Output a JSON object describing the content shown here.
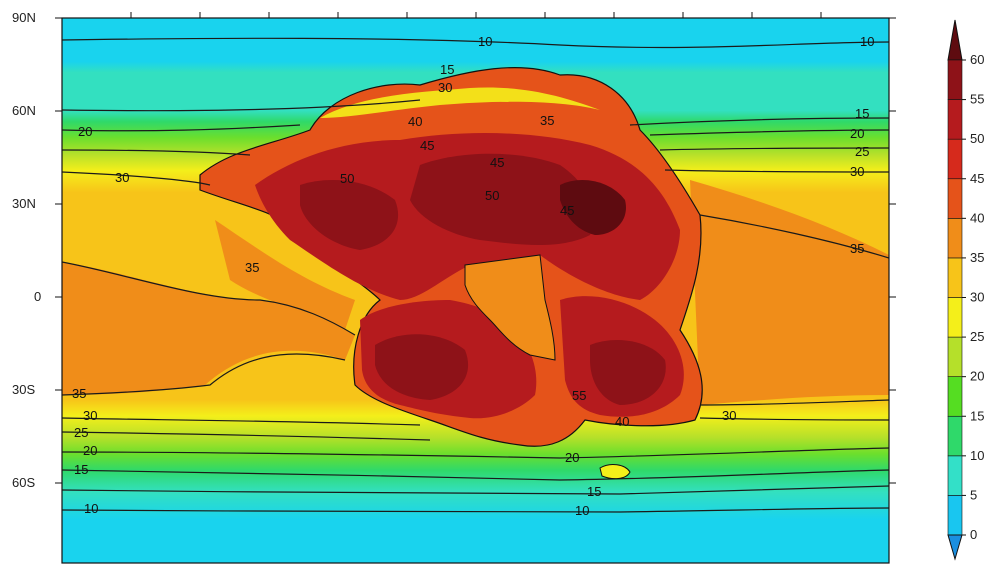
{
  "map": {
    "latitude_labels": [
      "90N",
      "60N",
      "30N",
      "0",
      "30S",
      "60S"
    ],
    "contour_labels": [
      "10",
      "10",
      "15",
      "30",
      "15",
      "20",
      "20",
      "25",
      "30",
      "30",
      "35",
      "35",
      "35",
      "30",
      "25",
      "20",
      "15",
      "10",
      "10",
      "15",
      "20",
      "30",
      "50",
      "45",
      "40",
      "35",
      "40",
      "45",
      "50",
      "55",
      "45"
    ]
  },
  "colorbar": {
    "ticks": [
      "0",
      "5",
      "10",
      "15",
      "20",
      "25",
      "30",
      "35",
      "40",
      "45",
      "50",
      "55",
      "60"
    ],
    "colors": [
      "#1a8fe0",
      "#19c6f0",
      "#33e0c8",
      "#2fd96a",
      "#55dd22",
      "#b5e02a",
      "#f4ef1a",
      "#f7c419",
      "#f08d19",
      "#e5531a",
      "#d62a1c",
      "#b51b1e",
      "#8e1218",
      "#5e0b10"
    ]
  }
}
